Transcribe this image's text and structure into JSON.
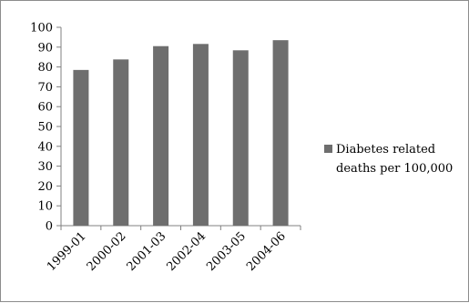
{
  "chart_data": {
    "type": "bar",
    "categories": [
      "1999-01",
      "2000-02",
      "2001-03",
      "2002-04",
      "2003-05",
      "2004-06"
    ],
    "series": [
      {
        "name": "Diabetes related deaths per 100,000",
        "values": [
          78.5,
          83.8,
          90.5,
          91.6,
          88.4,
          93.5
        ],
        "color": "#6e6e6e"
      }
    ],
    "ylim": [
      0,
      100
    ],
    "ytick_step": 10,
    "yticks": [
      "0",
      "10",
      "20",
      "30",
      "40",
      "50",
      "60",
      "70",
      "80",
      "90",
      "100"
    ],
    "grid": false,
    "legend_position": "right",
    "legend": {
      "line1": "Diabetes related",
      "line2": "deaths per 100,000"
    },
    "title": "",
    "xlabel": "",
    "ylabel": ""
  }
}
